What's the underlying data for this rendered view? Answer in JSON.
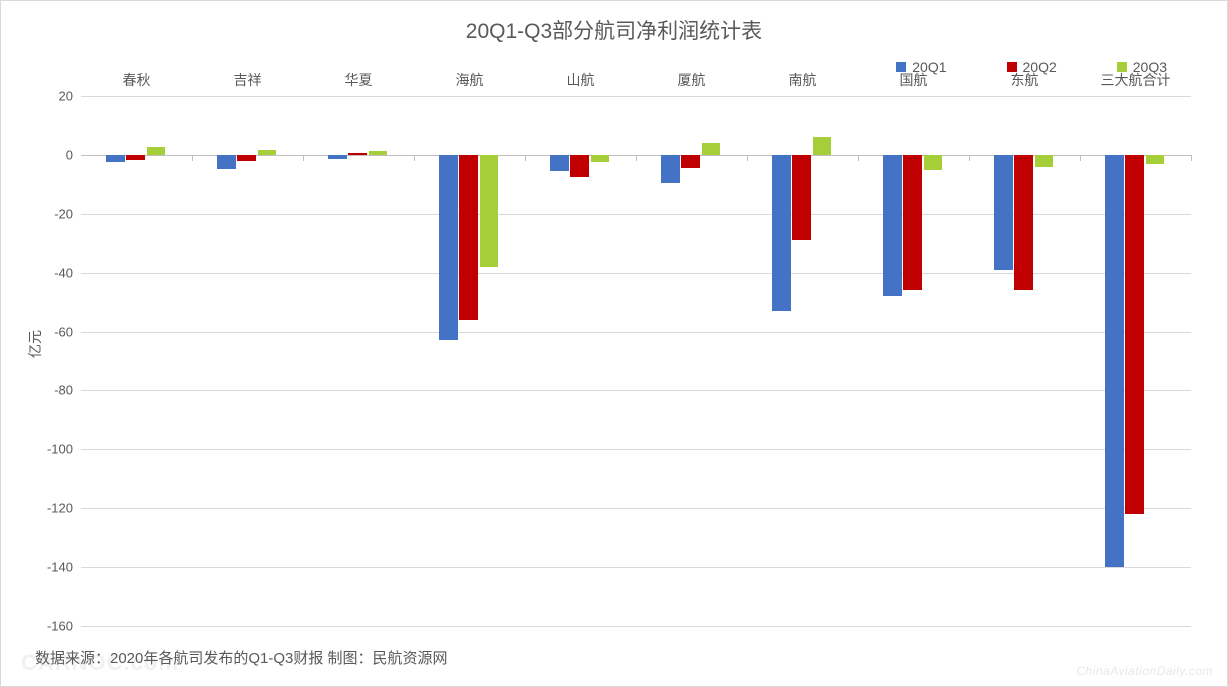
{
  "chart": {
    "type": "bar",
    "title": "20Q1-Q3部分航司净利润统计表",
    "title_fontsize": 21,
    "title_color": "#595959",
    "background_color": "#ffffff",
    "border_color": "#d9d9d9",
    "grid_color": "#d9d9d9",
    "axis_line_color": "#bfbfbf",
    "label_color": "#595959",
    "label_fontsize": 14,
    "tick_fontsize": 13,
    "y_axis": {
      "label": "亿元",
      "min": -160,
      "max": 20,
      "step": 20,
      "ticks": [
        20,
        0,
        -20,
        -40,
        -60,
        -80,
        -100,
        -120,
        -140,
        -160
      ]
    },
    "categories": [
      "春秋",
      "吉祥",
      "华夏",
      "海航",
      "山航",
      "厦航",
      "南航",
      "国航",
      "东航",
      "三大航合计"
    ],
    "series": [
      {
        "name": "20Q1",
        "color": "#4472c4",
        "values": [
          -2.3,
          -4.9,
          -1.3,
          -63,
          -5.5,
          -9.5,
          -53,
          -48,
          -39,
          -140
        ]
      },
      {
        "name": "20Q2",
        "color": "#c00000",
        "values": [
          -1.8,
          -2.0,
          0.7,
          -56,
          -7.5,
          -4.5,
          -29,
          -46,
          -46,
          -122
        ]
      },
      {
        "name": "20Q3",
        "color": "#a6ce39",
        "values": [
          2.6,
          1.8,
          1.3,
          -38,
          -2.5,
          4.2,
          6,
          -5,
          -4,
          -3
        ]
      }
    ],
    "bar_group_width_ratio": 0.55,
    "source_note": "数据来源：2020年各航司发布的Q1-Q3财报  制图：民航资源网",
    "watermark_right": "ChinaAviationDaily.com",
    "watermark_left": "CARNOC.com"
  }
}
